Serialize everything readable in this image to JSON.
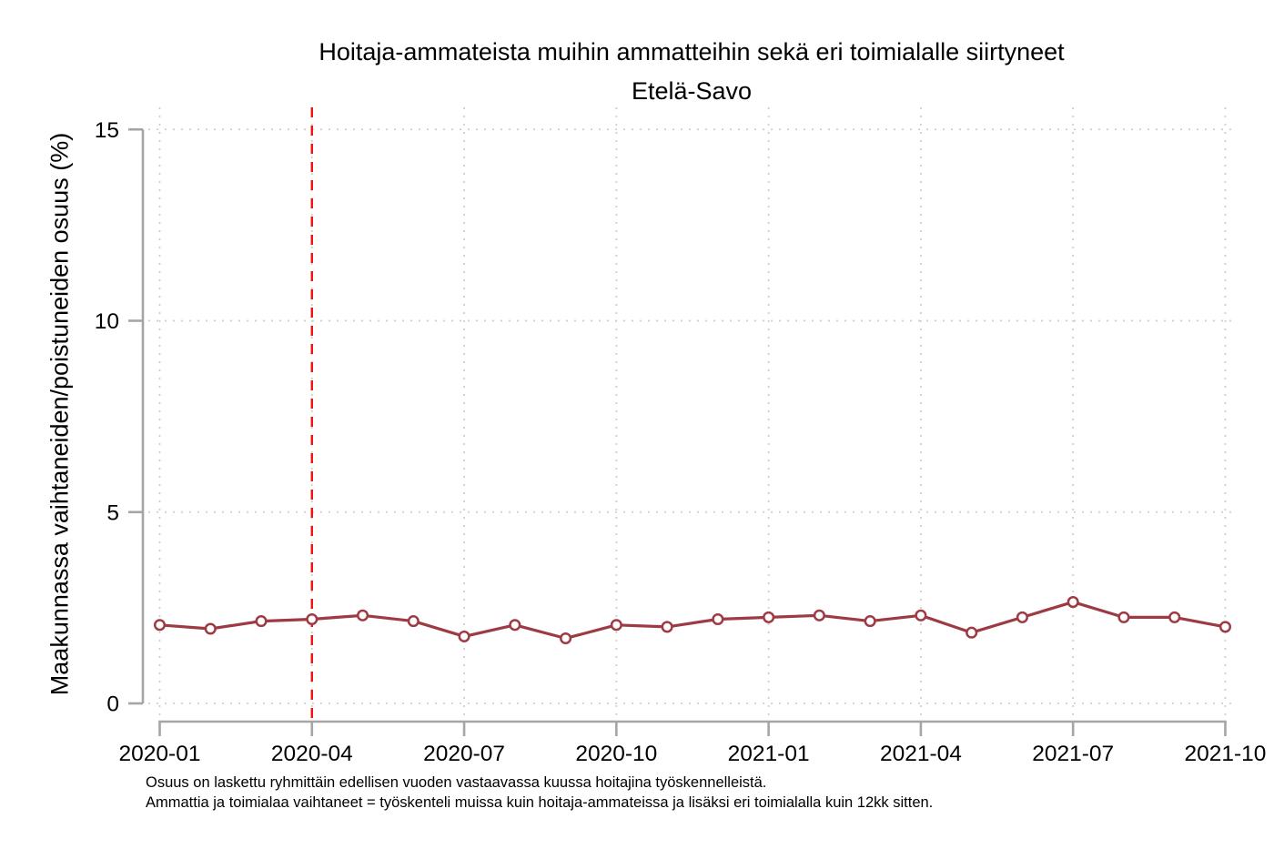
{
  "figure": {
    "title_line1": "Hoitaja-ammateista muihin ammatteihin sekä eri toimialalle siirtyneet",
    "title_line2": "Etelä-Savo",
    "ylabel": "Maakunnassa vaihtaneiden/poistuneiden osuus (%)",
    "footnote_line1": "Osuus on laskettu ryhmittäin edellisen vuoden vastaavassa kuussa hoitajina työskennelleistä.",
    "footnote_line2": "Ammattia ja toimialaa vaihtaneet = työskenteli muissa kuin hoitaja-ammateissa ja lisäksi eri toimialalla kuin 12kk sitten."
  },
  "chart_data": {
    "type": "line",
    "title": "Hoitaja-ammateista muihin ammatteihin sekä eri toimialalle siirtyneet",
    "subtitle": "Etelä-Savo",
    "ylabel": "Maakunnassa vaihtaneiden/poistuneiden osuus (%)",
    "x": [
      "2020-01",
      "2020-02",
      "2020-03",
      "2020-04",
      "2020-05",
      "2020-06",
      "2020-07",
      "2020-08",
      "2020-09",
      "2020-10",
      "2020-11",
      "2020-12",
      "2021-01",
      "2021-02",
      "2021-03",
      "2021-04",
      "2021-05",
      "2021-06",
      "2021-07",
      "2021-08",
      "2021-09",
      "2021-10"
    ],
    "series": [
      {
        "values": [
          2.05,
          1.95,
          2.15,
          2.2,
          2.3,
          2.15,
          1.75,
          2.05,
          1.7,
          2.05,
          2.0,
          2.2,
          2.25,
          2.3,
          2.15,
          2.3,
          1.85,
          2.25,
          2.65,
          2.25,
          2.25,
          2.0
        ]
      }
    ],
    "x_tick_labels": [
      "2020-01",
      "2020-04",
      "2020-07",
      "2020-10",
      "2021-01",
      "2021-04",
      "2021-07",
      "2021-10"
    ],
    "x_tick_every": 3,
    "y_ticks": [
      0,
      5,
      10,
      15
    ],
    "ylim": [
      0,
      15
    ],
    "grid": "dotted-both",
    "legend": "none",
    "marker": "open-circle",
    "reference_line": {
      "x": "2020-04",
      "style": "dashed",
      "orientation": "vertical"
    },
    "colors": {
      "line": "#9e3a44",
      "marker_fill": "#ffffff",
      "reference_line": "#f2100f",
      "axis": "#a5a5a5",
      "grid": "#cfcfcf",
      "text": "#000000",
      "background": "#ffffff"
    }
  }
}
